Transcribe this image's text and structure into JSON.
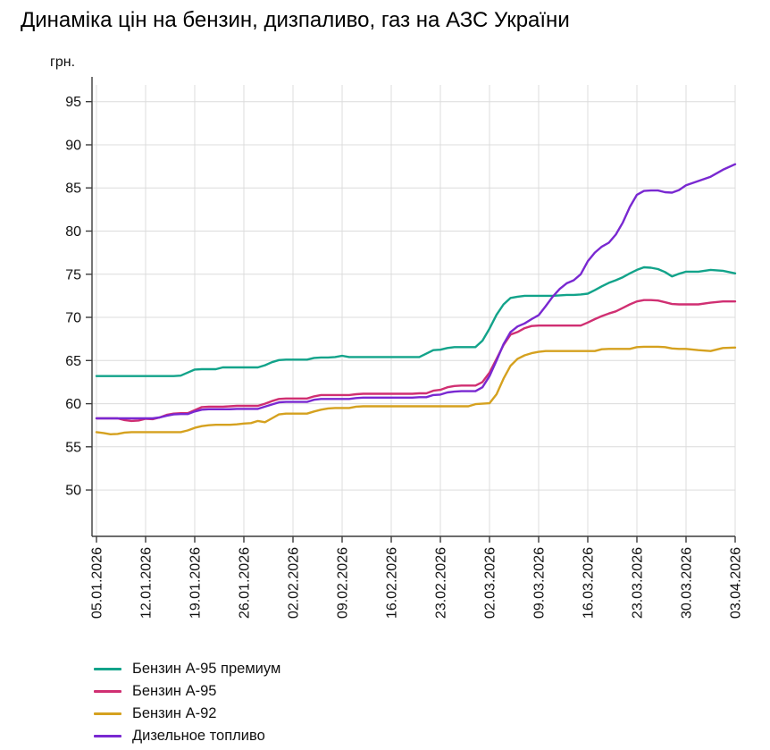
{
  "title": "Динаміка цін на бензин, дизпаливо, газ на АЗС України",
  "y_axis": {
    "unit_label": "грн."
  },
  "legend": {
    "items": [
      {
        "label": "Бензин А-95 премиум",
        "color": "#12a38a"
      },
      {
        "label": "Бензин А-95",
        "color": "#d02f72"
      },
      {
        "label": "Бензин А-92",
        "color": "#d5a11f"
      },
      {
        "label": "Дизельное топливо",
        "color": "#7928d1"
      }
    ]
  },
  "chart_data": {
    "type": "line",
    "title": "Динаміка цін на бензин, дизпаливо, газ на АЗС України",
    "xlabel": "",
    "ylabel": "грн.",
    "ylim": [
      46.5,
      97.5
    ],
    "grid": true,
    "legend_position": "bottom-left",
    "y_ticks": [
      50,
      55,
      60,
      65,
      70,
      75,
      80,
      85,
      90,
      95
    ],
    "x_tick_labels": [
      "05.01.2026",
      "12.01.2026",
      "19.01.2026",
      "26.01.2026",
      "02.02.2026",
      "09.02.2026",
      "16.02.2026",
      "23.02.2026",
      "02.03.2026",
      "09.03.2026",
      "16.03.2026",
      "23.03.2026",
      "30.03.2026",
      "03.04.2026"
    ],
    "x_resolution": "daily, 89 points from 05.01.2026 to 03.04.2026",
    "series": [
      {
        "name": "Бензин А-95 премиум",
        "color": "#12a38a",
        "values": [
          63.2,
          63.2,
          63.2,
          63.2,
          63.2,
          63.2,
          63.2,
          63.2,
          63.2,
          63.2,
          63.2,
          63.2,
          63.25,
          63.6,
          63.95,
          64.0,
          64.0,
          64.0,
          64.2,
          64.2,
          64.2,
          64.2,
          64.2,
          64.2,
          64.45,
          64.8,
          65.05,
          65.1,
          65.1,
          65.1,
          65.1,
          65.3,
          65.35,
          65.35,
          65.4,
          65.55,
          65.4,
          65.4,
          65.4,
          65.4,
          65.4,
          65.4,
          65.4,
          65.4,
          65.4,
          65.4,
          65.4,
          65.8,
          66.2,
          66.25,
          66.45,
          66.55,
          66.55,
          66.55,
          66.55,
          67.3,
          68.7,
          70.3,
          71.5,
          72.25,
          72.4,
          72.5,
          72.5,
          72.5,
          72.5,
          72.5,
          72.55,
          72.6,
          72.6,
          72.65,
          72.75,
          73.15,
          73.6,
          74.0,
          74.3,
          74.65,
          75.1,
          75.5,
          75.8,
          75.75,
          75.6,
          75.25,
          74.75,
          75.05,
          75.3,
          75.3,
          75.5,
          75.4,
          75.1
        ]
      },
      {
        "name": "Бензин А-95",
        "color": "#d02f72",
        "values": [
          58.3,
          58.3,
          58.3,
          58.3,
          58.1,
          58.0,
          58.05,
          58.25,
          58.2,
          58.4,
          58.7,
          58.85,
          58.9,
          58.9,
          59.25,
          59.6,
          59.65,
          59.65,
          59.65,
          59.7,
          59.75,
          59.75,
          59.75,
          59.75,
          60.0,
          60.3,
          60.55,
          60.6,
          60.6,
          60.6,
          60.6,
          60.85,
          61.0,
          61.0,
          61.0,
          61.0,
          61.0,
          61.1,
          61.15,
          61.15,
          61.15,
          61.15,
          61.15,
          61.15,
          61.15,
          61.15,
          61.2,
          61.2,
          61.5,
          61.6,
          61.9,
          62.05,
          62.1,
          62.1,
          62.1,
          62.5,
          63.6,
          65.2,
          66.8,
          68.0,
          68.3,
          68.75,
          69.0,
          69.05,
          69.05,
          69.05,
          69.05,
          69.05,
          69.05,
          69.05,
          69.4,
          69.8,
          70.15,
          70.45,
          70.7,
          71.1,
          71.5,
          71.85,
          72.0,
          72.0,
          71.95,
          71.75,
          71.55,
          71.5,
          71.5,
          71.5,
          71.7,
          71.85,
          71.85
        ]
      },
      {
        "name": "Бензин А-92",
        "color": "#d5a11f",
        "values": [
          56.7,
          56.6,
          56.45,
          56.5,
          56.65,
          56.7,
          56.7,
          56.7,
          56.7,
          56.7,
          56.7,
          56.7,
          56.7,
          56.9,
          57.2,
          57.4,
          57.5,
          57.55,
          57.55,
          57.55,
          57.6,
          57.7,
          57.75,
          58.0,
          57.85,
          58.3,
          58.75,
          58.85,
          58.85,
          58.85,
          58.85,
          59.1,
          59.3,
          59.45,
          59.5,
          59.5,
          59.5,
          59.65,
          59.7,
          59.7,
          59.7,
          59.7,
          59.7,
          59.7,
          59.7,
          59.7,
          59.7,
          59.7,
          59.7,
          59.7,
          59.7,
          59.7,
          59.7,
          59.7,
          59.95,
          60.0,
          60.05,
          61.1,
          62.9,
          64.4,
          65.2,
          65.6,
          65.85,
          66.0,
          66.1,
          66.1,
          66.1,
          66.1,
          66.1,
          66.1,
          66.1,
          66.1,
          66.3,
          66.35,
          66.35,
          66.35,
          66.35,
          66.55,
          66.6,
          66.6,
          66.6,
          66.55,
          66.4,
          66.35,
          66.35,
          66.2,
          66.1,
          66.45,
          66.5
        ]
      },
      {
        "name": "Дизельное топливо",
        "color": "#7928d1",
        "values": [
          58.3,
          58.3,
          58.3,
          58.3,
          58.3,
          58.3,
          58.3,
          58.3,
          58.3,
          58.4,
          58.6,
          58.75,
          58.8,
          58.8,
          59.1,
          59.3,
          59.35,
          59.35,
          59.35,
          59.35,
          59.4,
          59.4,
          59.4,
          59.4,
          59.65,
          59.9,
          60.15,
          60.2,
          60.2,
          60.2,
          60.2,
          60.45,
          60.55,
          60.55,
          60.55,
          60.55,
          60.55,
          60.65,
          60.7,
          60.7,
          60.7,
          60.7,
          60.7,
          60.7,
          60.7,
          60.7,
          60.75,
          60.75,
          61.0,
          61.05,
          61.3,
          61.4,
          61.45,
          61.45,
          61.45,
          61.9,
          63.2,
          65.0,
          66.9,
          68.3,
          68.95,
          69.3,
          69.8,
          70.25,
          71.3,
          72.4,
          73.3,
          73.95,
          74.3,
          75.0,
          76.5,
          77.5,
          78.2,
          78.65,
          79.6,
          81.0,
          82.8,
          84.2,
          84.65,
          84.7,
          84.7,
          84.5,
          84.45,
          84.75,
          85.3,
          85.8,
          86.3,
          87.1,
          87.75
        ]
      }
    ]
  }
}
